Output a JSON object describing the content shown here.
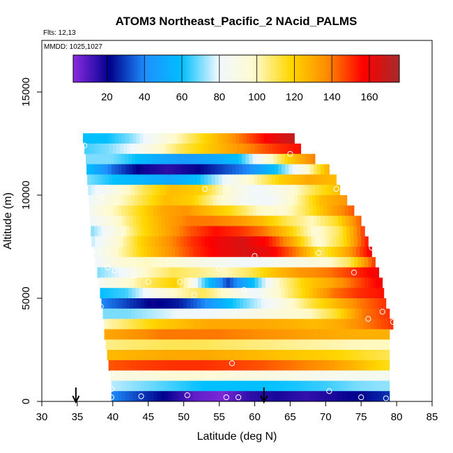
{
  "chart_data": {
    "type": "heatmap",
    "title": "ATOM3 Northeast_Pacific_2 NAcid_PALMS",
    "subtitle_lines": [
      "Flts: 12,13",
      "MMDD: 1025,1027"
    ],
    "xlabel": "Latitude (deg N)",
    "ylabel": "Altitude (m)",
    "xlim": [
      30,
      85
    ],
    "ylim": [
      0,
      17500
    ],
    "x_ticks": [
      30,
      35,
      40,
      45,
      50,
      55,
      60,
      65,
      70,
      75,
      80,
      85
    ],
    "y_ticks": [
      0,
      5000,
      10000,
      15000
    ],
    "colorbar": {
      "range": [
        2,
        176
      ],
      "ticks": [
        20,
        40,
        60,
        80,
        100,
        120,
        140,
        160
      ],
      "colors": [
        "#8a2be2",
        "#00008b",
        "#1e90ff",
        "#00bfff",
        "#f0f8ff",
        "#fffacd",
        "#ffd700",
        "#ff8c00",
        "#ff0000",
        "#a52a2a"
      ]
    },
    "grid_bins": {
      "altitude_band_m": 500,
      "latitude_bin_deg": 0.5
    },
    "bands": [
      {
        "alt_top": 12500,
        "lat_start": 35.8,
        "lat_end": 65.6,
        "vals": [
          60,
          60,
          70,
          85,
          100,
          115,
          130,
          145,
          160,
          170
        ]
      },
      {
        "alt_top": 12000,
        "lat_start": 36.0,
        "lat_end": 66.5,
        "vals": [
          65,
          70,
          80,
          95,
          110,
          120,
          130,
          140,
          150,
          155
        ]
      },
      {
        "alt_top": 11500,
        "lat_start": 36.2,
        "lat_end": 68.5,
        "vals": [
          70,
          70,
          60,
          50,
          45,
          50,
          60,
          90,
          120,
          140
        ]
      },
      {
        "alt_top": 11000,
        "lat_start": 36.3,
        "lat_end": 70.5,
        "vals": [
          60,
          35,
          20,
          15,
          20,
          30,
          40,
          60,
          90,
          130
        ]
      },
      {
        "alt_top": 10500,
        "lat_start": 36.4,
        "lat_end": 71.5,
        "vals": [
          70,
          60,
          55,
          50,
          60,
          80,
          100,
          120,
          130,
          125
        ]
      },
      {
        "alt_top": 10000,
        "lat_start": 36.5,
        "lat_end": 72.0,
        "vals": [
          75,
          90,
          110,
          125,
          120,
          95,
          80,
          90,
          110,
          125
        ]
      },
      {
        "alt_top": 9500,
        "lat_start": 36.6,
        "lat_end": 73.0,
        "vals": [
          80,
          95,
          110,
          125,
          120,
          100,
          85,
          80,
          100,
          125,
          135
        ]
      },
      {
        "alt_top": 9000,
        "lat_start": 36.7,
        "lat_end": 74.0,
        "vals": [
          85,
          100,
          115,
          130,
          135,
          125,
          115,
          100,
          95,
          110,
          130,
          145
        ]
      },
      {
        "alt_top": 8500,
        "lat_start": 36.8,
        "lat_end": 75.0,
        "vals": [
          80,
          95,
          115,
          130,
          140,
          140,
          135,
          125,
          110,
          100,
          115,
          145
        ]
      },
      {
        "alt_top": 8000,
        "lat_start": 36.9,
        "lat_end": 75.5,
        "vals": [
          70,
          90,
          115,
          130,
          145,
          155,
          150,
          140,
          120,
          95,
          110,
          150
        ]
      },
      {
        "alt_top": 7500,
        "lat_start": 37.0,
        "lat_end": 76.0,
        "vals": [
          75,
          95,
          120,
          135,
          150,
          160,
          165,
          155,
          130,
          95,
          115,
          155
        ]
      },
      {
        "alt_top": 7000,
        "lat_start": 37.3,
        "lat_end": 76.5,
        "vals": [
          80,
          100,
          120,
          135,
          150,
          160,
          165,
          160,
          140,
          110,
          130,
          160
        ]
      },
      {
        "alt_top": 6500,
        "lat_start": 37.5,
        "lat_end": 77.0,
        "vals": [
          80,
          95,
          100,
          95,
          90,
          85,
          80,
          85,
          90,
          95,
          110,
          150
        ]
      },
      {
        "alt_top": 6000,
        "lat_start": 37.8,
        "lat_end": 77.5,
        "vals": [
          70,
          80,
          100,
          110,
          105,
          100,
          110,
          125,
          135,
          140,
          150,
          160
        ]
      },
      {
        "alt_top": 5500,
        "lat_start": 38.0,
        "lat_end": 78.0,
        "vals": [
          85,
          95,
          110,
          120,
          70,
          30,
          60,
          100,
          120,
          130,
          145,
          160
        ]
      },
      {
        "alt_top": 5000,
        "lat_start": 38.2,
        "lat_end": 78.2,
        "vals": [
          60,
          65,
          85,
          100,
          110,
          95,
          80,
          100,
          120,
          140,
          150,
          155
        ]
      },
      {
        "alt_top": 4500,
        "lat_start": 38.4,
        "lat_end": 78.5,
        "vals": [
          40,
          30,
          20,
          25,
          40,
          60,
          75,
          90,
          110,
          125,
          140,
          150
        ]
      },
      {
        "alt_top": 4000,
        "lat_start": 38.6,
        "lat_end": 79.0,
        "vals": [
          70,
          70,
          75,
          80,
          80,
          85,
          90,
          95,
          100,
          115,
          140,
          150
        ]
      },
      {
        "alt_top": 3500,
        "lat_start": 38.8,
        "lat_end": 79.5,
        "vals": [
          100,
          110,
          120,
          125,
          130,
          130,
          130,
          128,
          125,
          130,
          140,
          150
        ]
      },
      {
        "alt_top": 3000,
        "lat_start": 38.8,
        "lat_end": 79.0,
        "vals": [
          130,
          135,
          140,
          140,
          140,
          138,
          135,
          132,
          130,
          128,
          128
        ]
      },
      {
        "alt_top": 2500,
        "lat_start": 39.0,
        "lat_end": 79.0,
        "vals": [
          105,
          108,
          110,
          110,
          108,
          106,
          104,
          102,
          100,
          100
        ]
      },
      {
        "alt_top": 2000,
        "lat_start": 39.2,
        "lat_end": 79.0,
        "vals": [
          125,
          128,
          130,
          130,
          128,
          125,
          122,
          120,
          115,
          110
        ]
      },
      {
        "alt_top": 1500,
        "lat_start": 39.4,
        "lat_end": 79.0,
        "vals": [
          145,
          148,
          150,
          150,
          148,
          145,
          140,
          135,
          125,
          115
        ]
      },
      {
        "alt_top": 1000,
        "lat_start": 39.6,
        "lat_end": 79.0,
        "vals": [
          90,
          92,
          95,
          95,
          92,
          90,
          88,
          86,
          85,
          85
        ]
      },
      {
        "alt_top": 500,
        "lat_start": 39.8,
        "lat_end": 79.0,
        "vals": [
          75,
          70,
          65,
          60,
          60,
          60,
          62,
          65,
          70,
          72
        ]
      },
      {
        "alt_top": 0,
        "lat_start": 39.8,
        "lat_end": 79.0,
        "vals": [
          40,
          30,
          20,
          8,
          4,
          15,
          18,
          14,
          18,
          22,
          28
        ]
      }
    ],
    "sample_points": [
      {
        "lat": 36.0,
        "alt": 12400
      },
      {
        "lat": 65.0,
        "alt": 12000
      },
      {
        "lat": 53.0,
        "alt": 10300
      },
      {
        "lat": 71.5,
        "alt": 10300
      },
      {
        "lat": 38.5,
        "alt": 9900
      },
      {
        "lat": 37.2,
        "alt": 7200
      },
      {
        "lat": 60.0,
        "alt": 7050
      },
      {
        "lat": 69.0,
        "alt": 7200
      },
      {
        "lat": 76.5,
        "alt": 7450
      },
      {
        "lat": 39.3,
        "alt": 6500
      },
      {
        "lat": 40.3,
        "alt": 6350
      },
      {
        "lat": 55.0,
        "alt": 6450
      },
      {
        "lat": 43.0,
        "alt": 6100
      },
      {
        "lat": 74.0,
        "alt": 6250
      },
      {
        "lat": 45.0,
        "alt": 5800
      },
      {
        "lat": 49.5,
        "alt": 5800
      },
      {
        "lat": 58.5,
        "alt": 5400
      },
      {
        "lat": 51.5,
        "alt": 5150
      },
      {
        "lat": 38.3,
        "alt": 4600
      },
      {
        "lat": 78.0,
        "alt": 4350
      },
      {
        "lat": 76.0,
        "alt": 4000
      },
      {
        "lat": 79.5,
        "alt": 3850
      },
      {
        "lat": 56.8,
        "alt": 1850
      },
      {
        "lat": 39.8,
        "alt": 1350
      },
      {
        "lat": 39.8,
        "alt": 600
      },
      {
        "lat": 70.5,
        "alt": 500
      },
      {
        "lat": 39.8,
        "alt": 200
      },
      {
        "lat": 44.0,
        "alt": 250
      },
      {
        "lat": 50.5,
        "alt": 300
      },
      {
        "lat": 56.0,
        "alt": 200
      },
      {
        "lat": 57.7,
        "alt": 200
      },
      {
        "lat": 75.0,
        "alt": 200
      },
      {
        "lat": 78.5,
        "alt": 150
      }
    ],
    "arrows_lat": [
      34.8,
      61.3
    ],
    "grid": false,
    "legend": "colorbar inside plot, top"
  }
}
